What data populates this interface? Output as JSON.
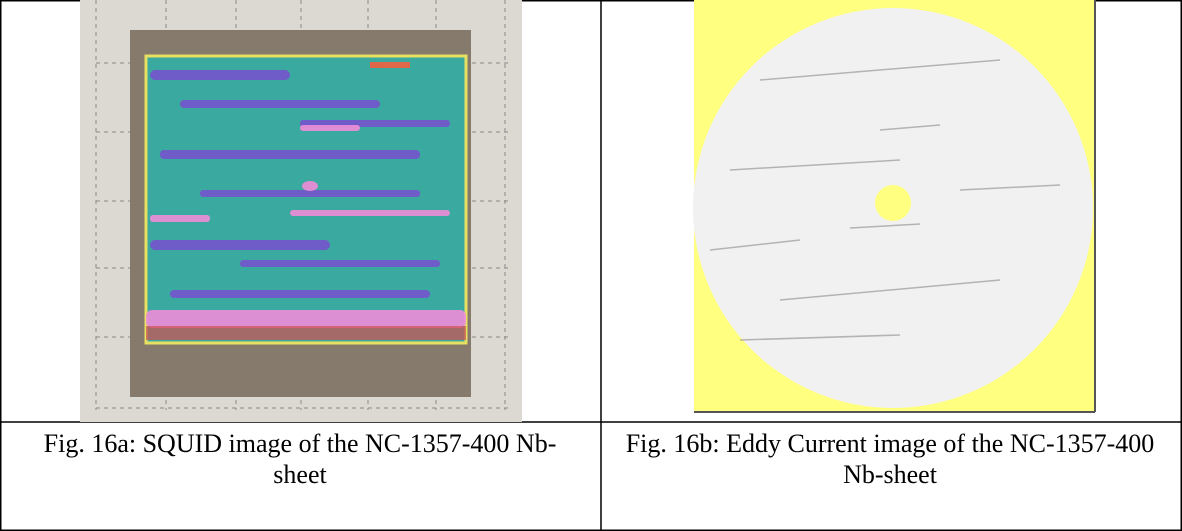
{
  "figures": [
    {
      "caption": "Fig. 16a: SQUID image of the NC-1357-400  Nb-sheet"
    },
    {
      "caption": "Fig. 16b: Eddy Current image of the NC-1357-400 Nb-sheet"
    }
  ]
}
